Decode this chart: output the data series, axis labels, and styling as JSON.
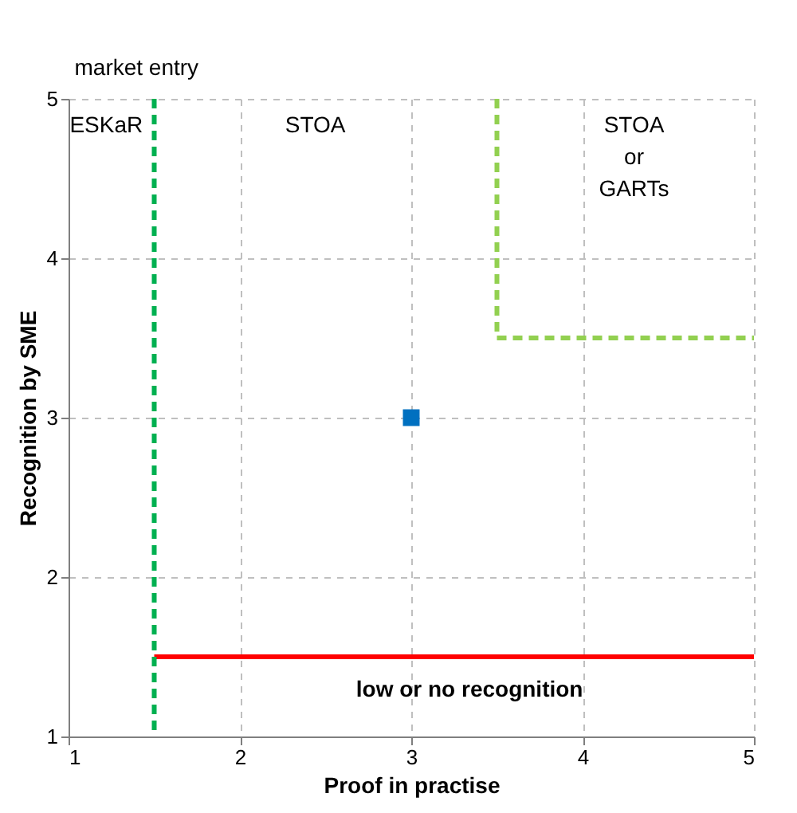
{
  "chart_data": {
    "type": "scatter",
    "xlabel": "Proof in practise",
    "ylabel": "Recognition by SME",
    "xlim": [
      1,
      5
    ],
    "ylim": [
      1,
      5
    ],
    "xticks": [
      1,
      2,
      3,
      4,
      5
    ],
    "yticks": [
      1,
      2,
      3,
      4,
      5
    ],
    "grid": true,
    "series": [
      {
        "x": [
          3
        ],
        "values": [
          3
        ],
        "color": "#0070c0",
        "marker": "square"
      },
      {
        "type": "line",
        "x": [
          3.5,
          3.5,
          5
        ],
        "values": [
          5,
          3.5,
          3.5
        ],
        "color": "#92d050",
        "line_style": "dashed"
      },
      {
        "type": "line",
        "x": [
          1.5,
          5
        ],
        "values": [
          1.5,
          1.5
        ],
        "color": "#ff0000",
        "line_style": "solid"
      }
    ],
    "ref_lines": [
      {
        "axis": "x",
        "value": 1.5,
        "label": "market entry",
        "color": "#00b050",
        "line_style": "dashed"
      }
    ],
    "annotations": [
      "ESKaR",
      "STOA",
      "STOA\nor\nGARTs",
      "low or no recognition"
    ]
  }
}
